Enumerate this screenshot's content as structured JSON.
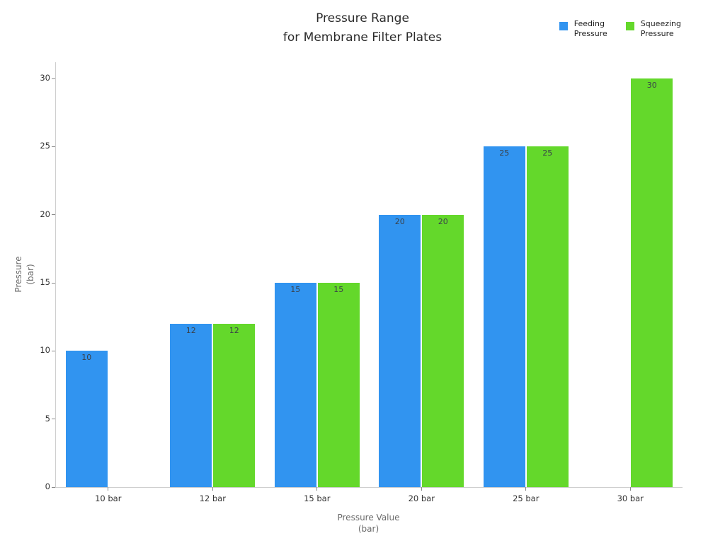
{
  "title": {
    "line1": "Pressure Range",
    "line2": "for Membrane Filter Plates"
  },
  "legend": [
    {
      "name": "feeding-pressure",
      "label": "Feeding\nPressure",
      "color": "#3194F0"
    },
    {
      "name": "squeezing-pressure",
      "label": "Squeezing\nPressure",
      "color": "#64D82B"
    }
  ],
  "colors": {
    "feeding": "#3194F0",
    "squeezing": "#64D82B",
    "axis_line": "#cfcfcf",
    "tick_text": "#333333",
    "axis_title_text": "#6b6b6b",
    "bar_label_text": "#3a4149"
  },
  "chart_data": {
    "type": "bar",
    "title": "Pressure Range for Membrane Filter Plates",
    "categories": [
      "10 bar",
      "12 bar",
      "15 bar",
      "20 bar",
      "25 bar",
      "30 bar"
    ],
    "series": [
      {
        "name": "Feeding Pressure",
        "color": "#3194F0",
        "values": [
          10,
          12,
          15,
          20,
          25,
          null
        ]
      },
      {
        "name": "Squeezing Pressure",
        "color": "#64D82B",
        "values": [
          null,
          12,
          15,
          20,
          25,
          30
        ]
      }
    ],
    "xlabel": "Pressure Value\n(bar)",
    "ylabel": "Pressure\n(bar)",
    "ylim": [
      0,
      30
    ],
    "yticks": [
      0,
      5,
      10,
      15,
      20,
      25,
      30
    ],
    "bar_value_labels": true,
    "legend_position": "top-right",
    "grid": false
  }
}
